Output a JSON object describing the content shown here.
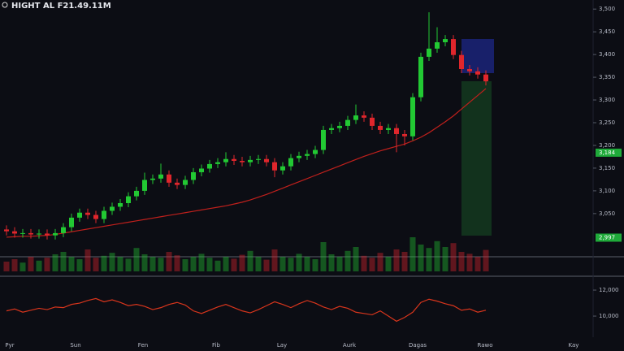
{
  "chart_data": {
    "type": "candlestick",
    "title": "HIGHT AL F21.49.11M",
    "up_color": "#22c933",
    "down_color": "#e0262c",
    "ma_color": "#c0201c",
    "osc_color": "#d8351c",
    "ylim": [
      2980,
      3520
    ],
    "yticks": [
      {
        "value": 3500,
        "label": "3,500"
      },
      {
        "value": 3450,
        "label": "3,450"
      },
      {
        "value": 3400,
        "label": "3,400"
      },
      {
        "value": 3350,
        "label": "3,350"
      },
      {
        "value": 3300,
        "label": "3,300"
      },
      {
        "value": 3250,
        "label": "3,250"
      },
      {
        "value": 3200,
        "label": "3,200"
      },
      {
        "value": 3150,
        "label": "3,150"
      },
      {
        "value": 3100,
        "label": "3,100"
      },
      {
        "value": 3050,
        "label": "3,050"
      }
    ],
    "price_tags": [
      {
        "value": 3184,
        "label": "3,184",
        "color": "#1faa3a"
      },
      {
        "value": 2997,
        "label": "2,997",
        "color": "#1faa3a"
      }
    ],
    "x_labels": [
      "Pyr",
      "Sun",
      "Fen",
      "Fib",
      "Lay",
      "Aurk",
      "Dagas",
      "Rawo",
      "Kay"
    ],
    "open": [
      3015,
      3011,
      3006,
      3007,
      3004,
      3006,
      3002,
      3007,
      3020,
      3041,
      3052,
      3047,
      3038,
      3056,
      3065,
      3073,
      3088,
      3100,
      3124,
      3127,
      3136,
      3118,
      3113,
      3124,
      3141,
      3149,
      3159,
      3163,
      3170,
      3166,
      3163,
      3168,
      3170,
      3163,
      3145,
      3154,
      3172,
      3177,
      3181,
      3190,
      3234,
      3238,
      3243,
      3256,
      3266,
      3261,
      3243,
      3234,
      3238,
      3225,
      3220,
      3306,
      3395,
      3413,
      3427,
      3434,
      3399,
      3368,
      3363,
      3356
    ],
    "high": [
      3024,
      3020,
      3016,
      3016,
      3015,
      3015,
      3016,
      3029,
      3050,
      3061,
      3061,
      3056,
      3065,
      3074,
      3082,
      3097,
      3109,
      3140,
      3136,
      3160,
      3145,
      3127,
      3133,
      3150,
      3158,
      3168,
      3172,
      3185,
      3179,
      3175,
      3177,
      3179,
      3179,
      3172,
      3163,
      3181,
      3186,
      3190,
      3199,
      3243,
      3247,
      3252,
      3265,
      3290,
      3275,
      3270,
      3252,
      3247,
      3247,
      3234,
      3315,
      3404,
      3493,
      3460,
      3443,
      3443,
      3408,
      3377,
      3372,
      3365
    ],
    "low": [
      3002,
      2997,
      2997,
      2995,
      2995,
      2993,
      2993,
      2998,
      3011,
      3032,
      3038,
      3029,
      3029,
      3047,
      3056,
      3064,
      3079,
      3091,
      3115,
      3118,
      3109,
      3104,
      3104,
      3115,
      3132,
      3140,
      3150,
      3154,
      3157,
      3154,
      3154,
      3159,
      3154,
      3130,
      3136,
      3145,
      3163,
      3168,
      3172,
      3181,
      3225,
      3229,
      3234,
      3247,
      3252,
      3234,
      3225,
      3225,
      3185,
      3200,
      3211,
      3297,
      3386,
      3404,
      3418,
      3390,
      3359,
      3354,
      3347,
      3332
    ],
    "close": [
      3011,
      3006,
      3007,
      3004,
      3006,
      3002,
      3007,
      3020,
      3041,
      3052,
      3047,
      3038,
      3056,
      3065,
      3073,
      3088,
      3100,
      3124,
      3127,
      3136,
      3118,
      3113,
      3124,
      3141,
      3149,
      3159,
      3163,
      3170,
      3166,
      3163,
      3168,
      3170,
      3163,
      3145,
      3154,
      3172,
      3177,
      3181,
      3190,
      3234,
      3238,
      3243,
      3256,
      3266,
      3261,
      3243,
      3234,
      3238,
      3225,
      3220,
      3306,
      3395,
      3413,
      3427,
      3434,
      3399,
      3368,
      3363,
      3356,
      3341
    ],
    "ma": [
      2998,
      2999,
      3000,
      3000,
      3001,
      3002,
      3004,
      3007,
      3010,
      3013,
      3016,
      3019,
      3022,
      3025,
      3028,
      3031,
      3034,
      3037,
      3040,
      3043,
      3046,
      3049,
      3052,
      3055,
      3058,
      3061,
      3064,
      3067,
      3071,
      3075,
      3080,
      3086,
      3092,
      3099,
      3106,
      3113,
      3120,
      3127,
      3134,
      3141,
      3148,
      3155,
      3162,
      3169,
      3176,
      3182,
      3188,
      3193,
      3198,
      3203,
      3210,
      3218,
      3228,
      3240,
      3252,
      3265,
      3280,
      3295,
      3310,
      3325
    ],
    "volume": [
      20,
      25,
      18,
      30,
      22,
      28,
      35,
      40,
      30,
      25,
      45,
      28,
      32,
      38,
      30,
      26,
      48,
      35,
      30,
      28,
      40,
      33,
      25,
      30,
      36,
      28,
      22,
      30,
      26,
      34,
      42,
      30,
      24,
      45,
      30,
      28,
      36,
      30,
      25,
      60,
      35,
      30,
      42,
      50,
      32,
      28,
      38,
      30,
      45,
      40,
      70,
      55,
      48,
      62,
      50,
      58,
      40,
      36,
      30,
      44
    ],
    "vlim": [
      0,
      100
    ],
    "oscillator": [
      10400,
      10550,
      10300,
      10450,
      10600,
      10500,
      10700,
      10650,
      10900,
      11000,
      11200,
      11350,
      11100,
      11250,
      11050,
      10800,
      10900,
      10750,
      10500,
      10650,
      10900,
      11050,
      10850,
      10400,
      10200,
      10450,
      10700,
      10900,
      10650,
      10400,
      10250,
      10500,
      10800,
      11100,
      10900,
      10650,
      10950,
      11200,
      11000,
      10700,
      10500,
      10750,
      10600,
      10300,
      10200,
      10100,
      10400,
      10000,
      9600,
      9900,
      10300,
      11050,
      11300,
      11150,
      10950,
      10800,
      10450,
      10550,
      10300,
      10450
    ],
    "osc_ylim": [
      8690,
      12940
    ],
    "osc_yticks": [
      {
        "value": 12000,
        "label": "12,000"
      },
      {
        "value": 10000,
        "label": "10,000"
      }
    ]
  }
}
